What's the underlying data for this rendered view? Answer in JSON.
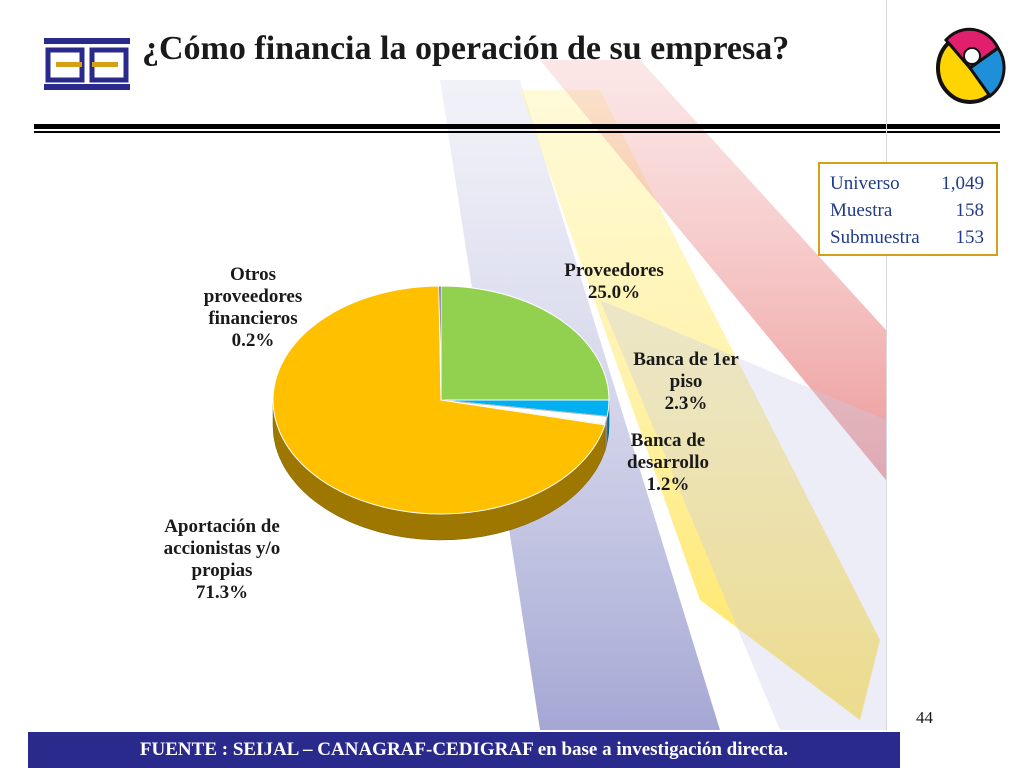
{
  "header": {
    "title": "¿Cómo financia la operación de su empresa?"
  },
  "info_box": {
    "rows": [
      {
        "label": "Universo",
        "value": "1,049"
      },
      {
        "label": "Muestra",
        "value": "158"
      },
      {
        "label": "Submuestra",
        "value": "153"
      }
    ]
  },
  "chart_data": {
    "type": "pie",
    "title": "¿Cómo financia la operación de su empresa?",
    "slices": [
      {
        "label_lines": [
          "Proveedores"
        ],
        "value": 25.0,
        "value_label": "25.0%",
        "color": "#92d050"
      },
      {
        "label_lines": [
          "Banca de 1er",
          "piso"
        ],
        "value": 2.3,
        "value_label": "2.3%",
        "color": "#00b0f0"
      },
      {
        "label_lines": [
          "Banca de",
          "desarrollo"
        ],
        "value": 1.2,
        "value_label": "1.2%",
        "color": "#ffffff"
      },
      {
        "label_lines": [
          "Aportación de",
          "accionistas y/o",
          "propias"
        ],
        "value": 71.3,
        "value_label": "71.3%",
        "color": "#ffc000"
      },
      {
        "label_lines": [
          "Otros",
          "proveedores",
          "financieros"
        ],
        "value": 0.2,
        "value_label": "0.2%",
        "color": "#2a2a8c"
      }
    ],
    "legend": "none",
    "style": "3d"
  },
  "footer": {
    "source_label": "FUENTE :  SEIJAL – CANAGRAF-CEDIGRAF",
    "source_suffix": " en base a investigación directa."
  },
  "page": {
    "number": "44"
  }
}
